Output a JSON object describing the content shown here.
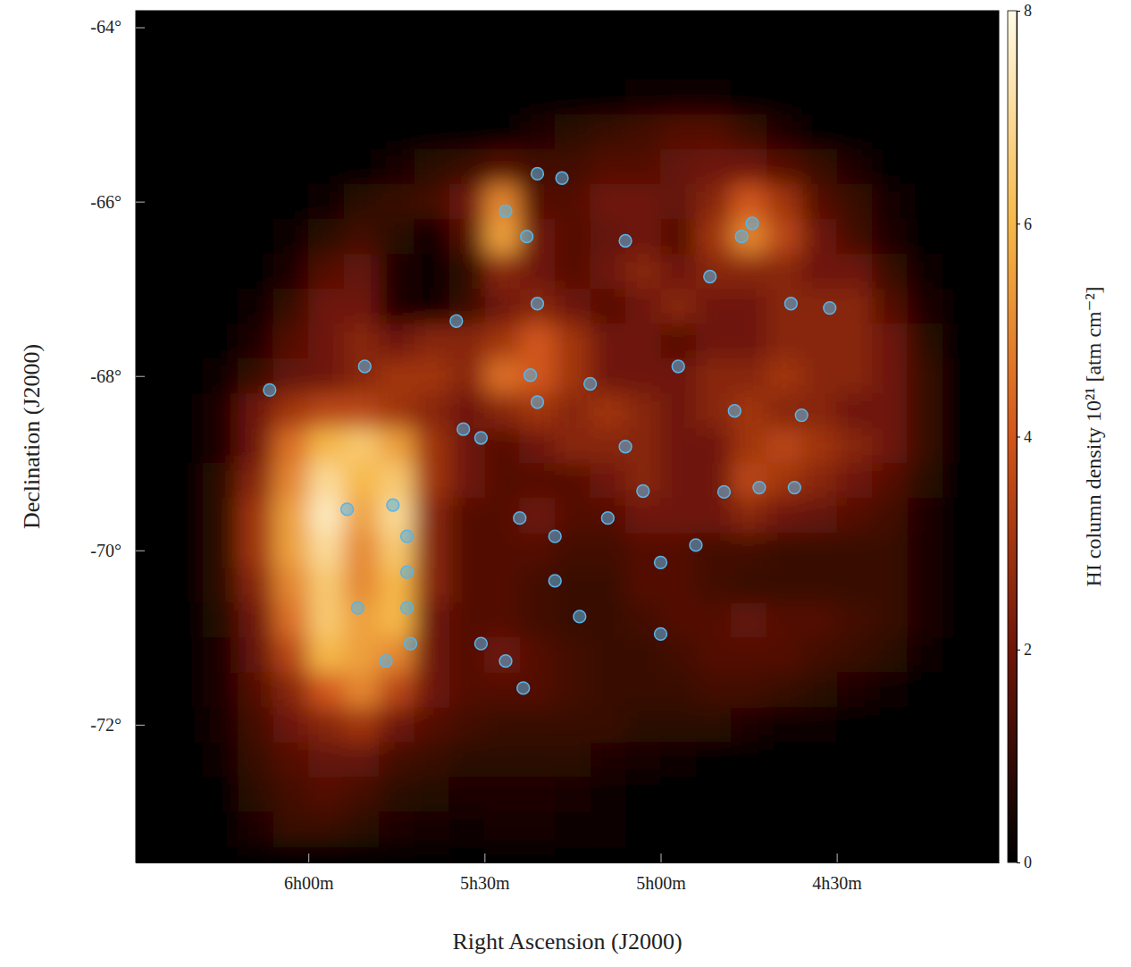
{
  "chart_data": {
    "type": "heatmap",
    "xlabel": "Right Ascension (J2000)",
    "ylabel": "Declination (J2000)",
    "xlim": [
      6.49,
      4.04
    ],
    "ylim": [
      -73.58,
      -63.81
    ],
    "xticks": [
      {
        "value": 6.0,
        "label": "6h00m"
      },
      {
        "value": 5.5,
        "label": "5h30m"
      },
      {
        "value": 5.0,
        "label": "5h00m"
      },
      {
        "value": 4.5,
        "label": "4h30m"
      }
    ],
    "yticks": [
      {
        "value": -64,
        "label": "-64°"
      },
      {
        "value": -66,
        "label": "-66°"
      },
      {
        "value": -68,
        "label": "-68°"
      },
      {
        "value": -70,
        "label": "-70°"
      },
      {
        "value": -72,
        "label": "-72°"
      }
    ],
    "x": [
      6.45,
      6.35,
      6.25,
      6.15,
      6.05,
      5.95,
      5.85,
      5.75,
      5.65,
      5.55,
      5.45,
      5.35,
      5.25,
      5.15,
      5.05,
      4.95,
      4.85,
      4.75,
      4.65,
      4.55,
      4.45,
      4.35,
      4.25,
      4.15
    ],
    "y": [
      -64.0,
      -64.4,
      -64.8,
      -65.2,
      -65.6,
      -66.0,
      -66.4,
      -66.8,
      -67.2,
      -67.6,
      -68.0,
      -68.4,
      -68.8,
      -69.2,
      -69.6,
      -70.0,
      -70.4,
      -70.8,
      -71.2,
      -71.6,
      -72.0,
      -72.4,
      -72.8,
      -73.2
    ],
    "cells": [
      [
        0,
        0,
        0,
        0,
        0,
        0,
        0,
        0,
        0,
        0,
        0,
        0,
        0,
        0,
        0,
        0,
        0,
        0,
        0,
        0,
        0,
        0,
        0,
        0
      ],
      [
        0,
        0,
        0,
        0,
        0,
        0,
        0,
        0,
        0,
        0,
        0,
        0,
        0,
        0,
        0,
        0,
        0,
        0,
        0,
        0,
        0,
        0,
        0,
        0
      ],
      [
        0,
        0,
        0,
        0,
        0,
        0,
        0,
        0,
        0,
        0,
        0,
        0,
        0,
        0,
        0.3,
        0.3,
        0.2,
        0,
        0,
        0,
        0,
        0,
        0,
        0
      ],
      [
        0,
        0,
        0,
        0,
        0,
        0,
        0,
        0,
        0,
        0,
        0,
        0.5,
        0.8,
        1,
        1.2,
        1.5,
        1.5,
        1,
        0.5,
        0,
        0,
        0,
        0,
        0
      ],
      [
        0,
        0,
        0,
        0,
        0,
        0,
        0,
        0.4,
        0.8,
        1,
        1.5,
        1.2,
        1.2,
        1.5,
        1.5,
        1.8,
        2,
        2,
        1.5,
        1,
        0.5,
        0,
        0,
        0
      ],
      [
        0,
        0,
        0,
        0,
        0,
        0.3,
        0.8,
        1,
        1.2,
        2,
        5,
        1.5,
        1.5,
        2,
        2,
        1.8,
        2.5,
        4,
        3,
        1.5,
        1,
        0.4,
        0,
        0
      ],
      [
        0,
        0,
        0,
        0,
        0.3,
        0.8,
        1.2,
        0.8,
        0.3,
        1.5,
        5.5,
        2,
        1.5,
        1.8,
        2,
        1.5,
        3,
        5,
        3.5,
        2,
        1.2,
        0.5,
        0,
        0
      ],
      [
        0,
        0,
        0,
        0,
        0.5,
        1.5,
        1.8,
        0.5,
        0.2,
        0.8,
        2.5,
        2,
        1.5,
        2,
        2.5,
        2,
        2.5,
        2.5,
        2.5,
        2,
        2,
        1,
        0.3,
        0
      ],
      [
        0,
        0,
        0,
        0.3,
        1,
        2,
        2,
        0.5,
        0.3,
        1,
        2,
        2.5,
        2,
        1.5,
        2,
        2.5,
        2,
        2,
        2.5,
        2.5,
        2.5,
        1.5,
        0.5,
        0
      ],
      [
        0,
        0,
        0,
        0.5,
        1.5,
        2,
        2.5,
        2,
        2.5,
        2.5,
        3,
        4,
        3,
        2,
        2,
        1.5,
        2,
        2,
        2.5,
        2.5,
        2.5,
        2,
        0.8,
        0
      ],
      [
        0,
        0,
        0.3,
        1,
        1.8,
        2,
        2.5,
        3,
        3,
        2.5,
        4.5,
        4,
        3,
        2,
        2,
        2,
        2.5,
        2.5,
        3,
        2.5,
        2.5,
        2,
        1,
        0
      ],
      [
        0,
        0,
        0.5,
        2,
        3,
        3.5,
        3.5,
        3,
        2.5,
        2,
        2.5,
        3,
        2.5,
        3,
        2.5,
        2,
        2.5,
        3,
        2.5,
        2.5,
        2,
        2,
        1,
        0
      ],
      [
        0,
        0,
        0.5,
        2,
        4.5,
        6,
        6.5,
        5.5,
        3,
        2,
        1.5,
        2,
        2.5,
        2.5,
        2.5,
        2,
        2,
        3,
        3.5,
        3,
        2.5,
        2,
        1,
        0
      ],
      [
        0,
        0,
        0.8,
        2.5,
        5,
        7,
        6,
        6.5,
        3,
        2,
        1.5,
        1.5,
        1.5,
        2,
        2.5,
        2,
        2,
        3.5,
        3,
        2.5,
        2,
        1.5,
        0.8,
        0
      ],
      [
        0,
        0,
        0.8,
        3,
        5.5,
        7.5,
        5.5,
        7,
        2.5,
        1.5,
        1.5,
        2,
        1.5,
        1.5,
        2,
        2,
        2,
        2.5,
        2,
        1.8,
        1.5,
        1.2,
        0.5,
        0
      ],
      [
        0,
        0,
        0.8,
        3,
        5.5,
        7,
        5,
        6.5,
        2.5,
        1.5,
        1.5,
        1.5,
        1.2,
        1.2,
        1.5,
        1.5,
        1.2,
        1.2,
        1,
        1,
        1,
        1,
        0.5,
        0
      ],
      [
        0,
        0,
        0.8,
        2.5,
        5,
        6.5,
        5,
        6,
        2.5,
        1.5,
        1.5,
        1.2,
        1,
        1,
        1.5,
        1.5,
        1.2,
        1,
        1,
        1,
        1,
        1,
        0.5,
        0
      ],
      [
        0,
        0,
        0.6,
        2,
        4.5,
        6.5,
        5.5,
        6,
        2,
        1.5,
        1.5,
        1.2,
        1,
        1,
        1.2,
        1.5,
        1.5,
        1.8,
        1.5,
        1.5,
        1.2,
        1,
        0.5,
        0
      ],
      [
        0,
        0,
        0.5,
        1.8,
        3.5,
        6,
        5.5,
        5,
        2,
        1.5,
        2,
        1.5,
        1.2,
        1,
        1,
        1.2,
        1.5,
        1.5,
        1.5,
        1.2,
        1,
        0.8,
        0.3,
        0
      ],
      [
        0,
        0,
        0.5,
        1.5,
        2.5,
        4,
        5,
        3.5,
        2,
        1.5,
        1.5,
        1.5,
        1.2,
        1,
        1,
        1,
        1.2,
        1.2,
        1,
        0.8,
        0.5,
        0.3,
        0,
        0
      ],
      [
        0,
        0,
        0.4,
        1.2,
        2,
        2.5,
        3,
        2,
        1.5,
        1.2,
        1,
        1,
        1,
        1,
        0.8,
        0.8,
        0.8,
        0.5,
        0.3,
        0.2,
        0,
        0,
        0,
        0
      ],
      [
        0,
        0,
        0.3,
        1,
        1.5,
        1.8,
        1.8,
        1.2,
        1,
        0.8,
        0.8,
        0.8,
        0.8,
        0.5,
        0.4,
        0.2,
        0,
        0,
        0,
        0,
        0,
        0,
        0,
        0
      ],
      [
        0,
        0,
        0,
        0.8,
        1.2,
        1.5,
        1.2,
        0.8,
        0.6,
        0.5,
        0.5,
        0.5,
        0.4,
        0.3,
        0,
        0,
        0,
        0,
        0,
        0,
        0,
        0,
        0,
        0
      ],
      [
        0,
        0,
        0,
        0.5,
        1,
        1,
        0.8,
        0.5,
        0.4,
        0.3,
        0.4,
        0.4,
        0.3,
        0.2,
        0,
        0,
        0,
        0,
        0,
        0,
        0,
        0,
        0,
        0
      ]
    ],
    "colorbar": {
      "label": "HI column density 10²¹ [atm cm⁻²]",
      "range": [
        0,
        8
      ],
      "ticks": [
        0,
        2,
        4,
        6,
        8
      ]
    },
    "points": {
      "color": "#5ab4e6",
      "marker": "circle",
      "x": [
        5.44,
        5.38,
        6.11,
        5.89,
        5.76,
        5.72,
        5.72,
        5.72,
        5.86,
        5.71,
        5.78,
        5.37,
        5.35,
        5.2,
        5.56,
        5.51,
        5.1,
        5.05,
        5.15,
        5.4,
        5.3,
        5.51,
        5.44,
        5.39,
        5.23,
        5.0,
        4.9,
        4.82,
        4.72,
        4.62,
        4.79,
        4.6,
        4.74,
        4.77,
        4.86,
        4.63,
        4.52,
        4.95,
        5.1,
        5.28,
        5.35,
        5.58,
        5.84,
        5.0,
        5.3,
        5.35
      ],
      "y": [
        -66.11,
        -66.4,
        -68.16,
        -69.53,
        -69.48,
        -69.84,
        -70.25,
        -70.66,
        -70.66,
        -71.07,
        -71.27,
        -67.99,
        -68.3,
        -68.09,
        -68.61,
        -68.71,
        -68.81,
        -69.32,
        -69.63,
        -69.63,
        -69.84,
        -71.07,
        -71.27,
        -71.58,
        -70.76,
        -70.14,
        -69.94,
        -69.33,
        -69.28,
        -69.28,
        -68.4,
        -68.45,
        -66.25,
        -66.4,
        -66.86,
        -67.17,
        -67.22,
        -67.89,
        -66.45,
        -65.73,
        -67.17,
        -67.37,
        -67.89,
        -70.96,
        -70.35,
        -65.68
      ]
    }
  }
}
